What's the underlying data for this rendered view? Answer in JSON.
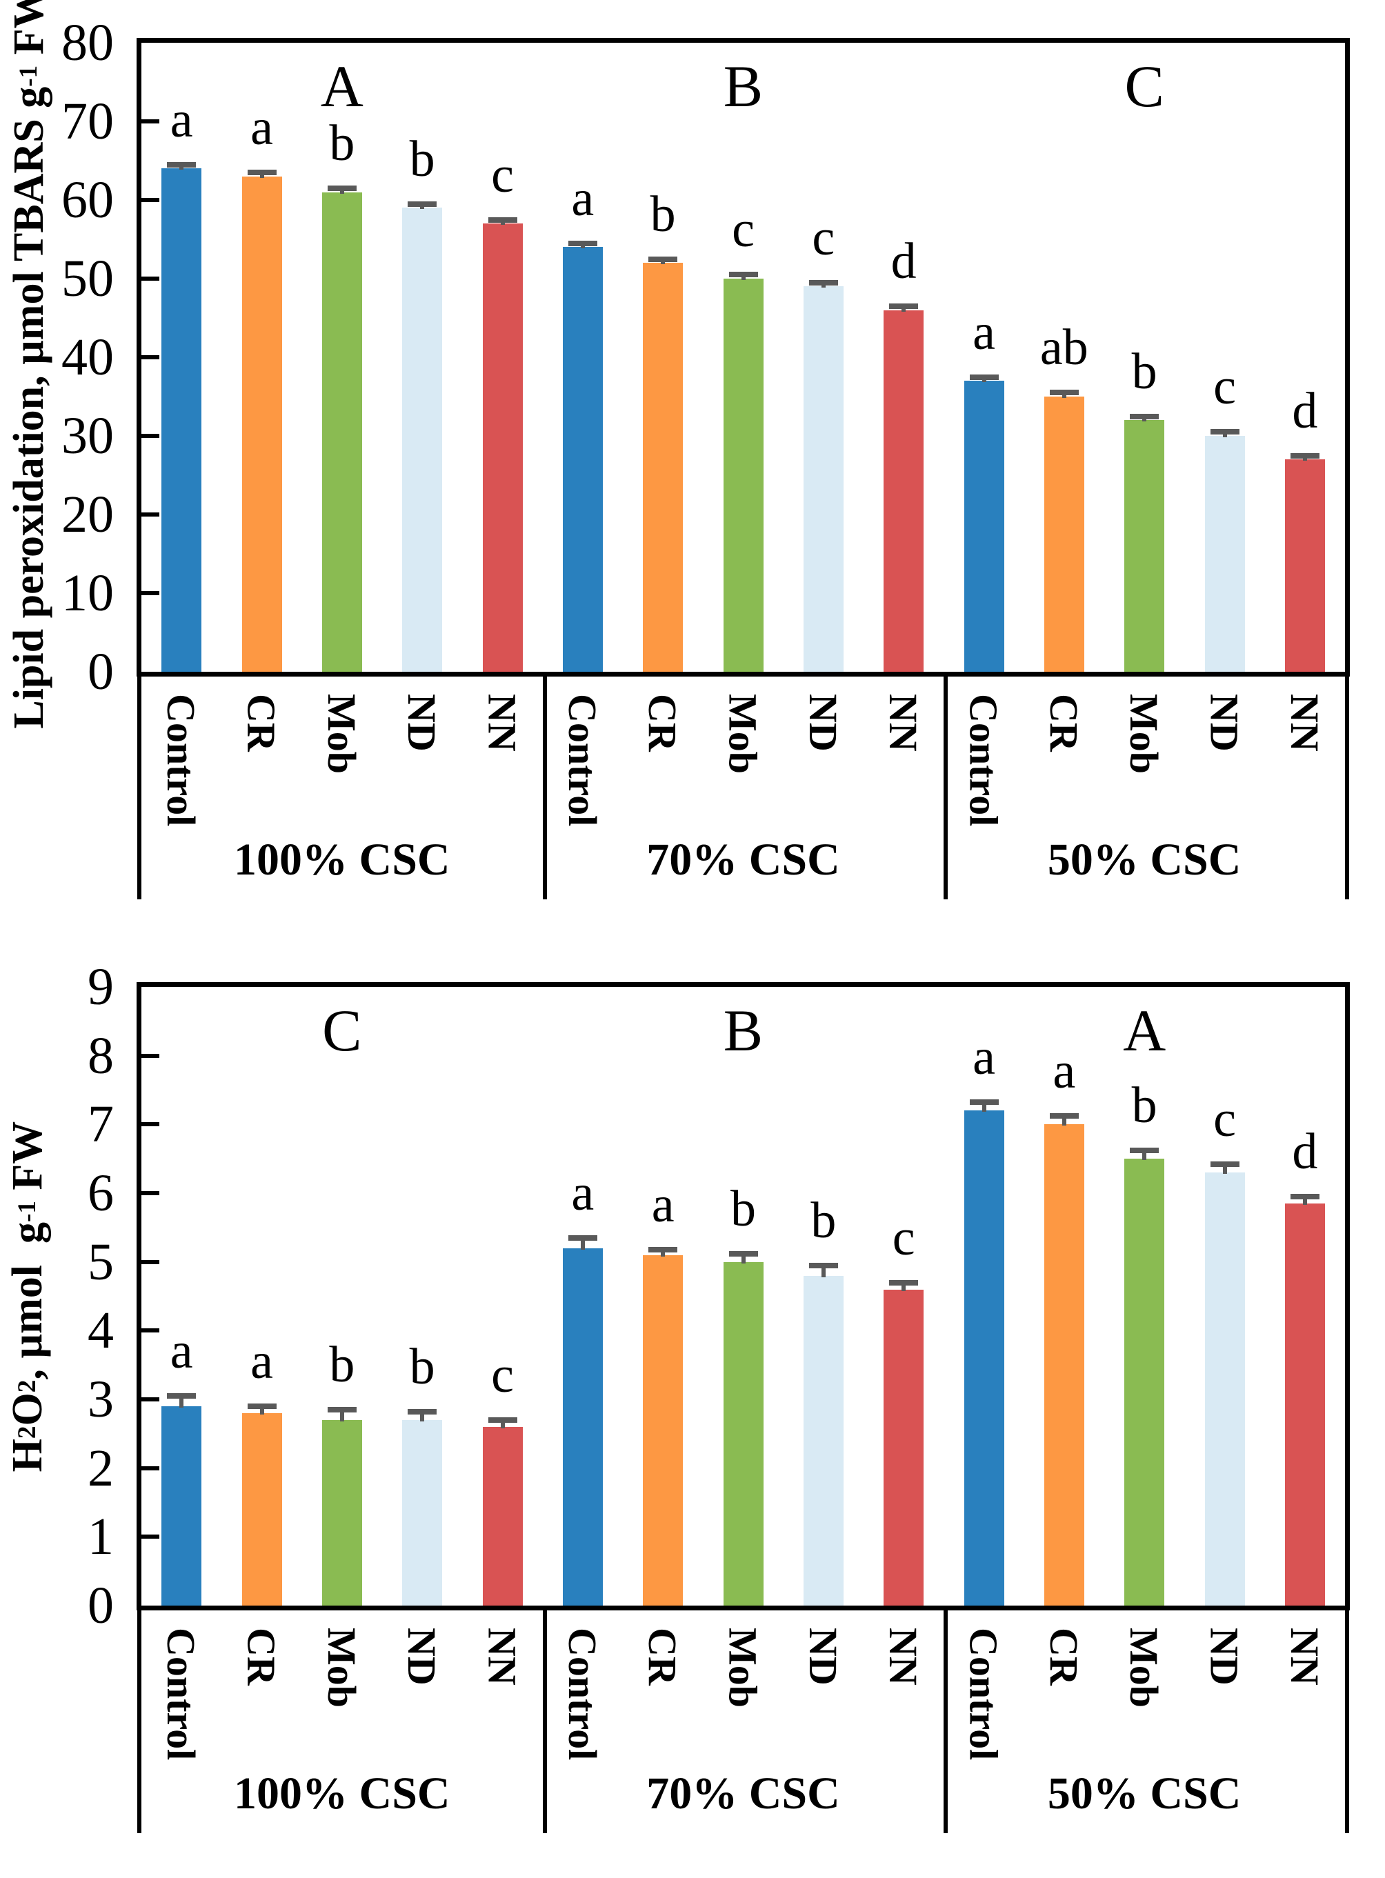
{
  "figure": {
    "background": "#ffffff",
    "error_bar_color": "#595959",
    "axis_color": "#000000"
  },
  "chart_data": [
    {
      "id": "lipid-peroxidation",
      "type": "bar",
      "title": "",
      "ylabel": "Lipid peroxidation, µmol TBARS g-1 FW",
      "ylabel_parts": [
        {
          "t": "text",
          "v": "Lipid peroxidation, µmol TBARS g"
        },
        {
          "t": "sup",
          "v": "-1"
        },
        {
          "t": "text",
          "v": " FW"
        }
      ],
      "xlabel": "",
      "ylim": [
        0,
        80
      ],
      "yticks": [
        0,
        10,
        20,
        30,
        40,
        50,
        60,
        70,
        80
      ],
      "grid": false,
      "legend": "none",
      "categories": [
        "Control",
        "CR",
        "Mob",
        "ND",
        "NN"
      ],
      "series_colors": [
        "#2980BE",
        "#FD9843",
        "#8ABB52",
        "#D9EAF4",
        "#D95353"
      ],
      "groups": [
        {
          "label": "100% CSC",
          "panel_letter": "A",
          "values": [
            64,
            63,
            61,
            59,
            57
          ],
          "errors": [
            0.5,
            0.5,
            0.5,
            0.5,
            0.5
          ],
          "sig_letters": [
            "a",
            "a",
            "b",
            "b",
            "c"
          ]
        },
        {
          "label": "70% CSC",
          "panel_letter": "B",
          "values": [
            54,
            52,
            50,
            49,
            46
          ],
          "errors": [
            0.5,
            0.5,
            0.5,
            0.5,
            0.5
          ],
          "sig_letters": [
            "a",
            "b",
            "c",
            "c",
            "d"
          ]
        },
        {
          "label": "50% CSC",
          "panel_letter": "C",
          "values": [
            37,
            35,
            32,
            30,
            27
          ],
          "errors": [
            0.5,
            0.5,
            0.5,
            0.5,
            0.5
          ],
          "sig_letters": [
            "a",
            "ab",
            "b",
            "c",
            "d"
          ]
        }
      ]
    },
    {
      "id": "h2o2",
      "type": "bar",
      "title": "",
      "ylabel": "H2O2, µmol  g-1 FW",
      "ylabel_parts": [
        {
          "t": "text",
          "v": "H"
        },
        {
          "t": "sub",
          "v": "2"
        },
        {
          "t": "text",
          "v": "O"
        },
        {
          "t": "sub",
          "v": "2"
        },
        {
          "t": "text",
          "v": ", µmol  g"
        },
        {
          "t": "sup",
          "v": "-1"
        },
        {
          "t": "text",
          "v": " FW"
        }
      ],
      "xlabel": "",
      "ylim": [
        0,
        9
      ],
      "yticks": [
        0,
        1,
        2,
        3,
        4,
        5,
        6,
        7,
        8,
        9
      ],
      "grid": false,
      "legend": "none",
      "categories": [
        "Control",
        "CR",
        "Mob",
        "ND",
        "NN"
      ],
      "series_colors": [
        "#2980BE",
        "#FD9843",
        "#8ABB52",
        "#D9EAF4",
        "#D95353"
      ],
      "groups": [
        {
          "label": "100% CSC",
          "panel_letter": "C",
          "values": [
            2.9,
            2.8,
            2.7,
            2.7,
            2.6
          ],
          "errors": [
            0.15,
            0.1,
            0.15,
            0.12,
            0.1
          ],
          "sig_letters": [
            "a",
            "a",
            "b",
            "b",
            "c"
          ]
        },
        {
          "label": "70% CSC",
          "panel_letter": "B",
          "values": [
            5.2,
            5.1,
            5.0,
            4.8,
            4.6
          ],
          "errors": [
            0.15,
            0.08,
            0.12,
            0.15,
            0.1
          ],
          "sig_letters": [
            "a",
            "a",
            "b",
            "b",
            "c"
          ]
        },
        {
          "label": "50% CSC",
          "panel_letter": "A",
          "values": [
            7.2,
            7.0,
            6.5,
            6.3,
            5.85
          ],
          "errors": [
            0.12,
            0.12,
            0.12,
            0.12,
            0.1
          ],
          "sig_letters": [
            "a",
            "a",
            "b",
            "c",
            "d"
          ]
        }
      ]
    }
  ]
}
